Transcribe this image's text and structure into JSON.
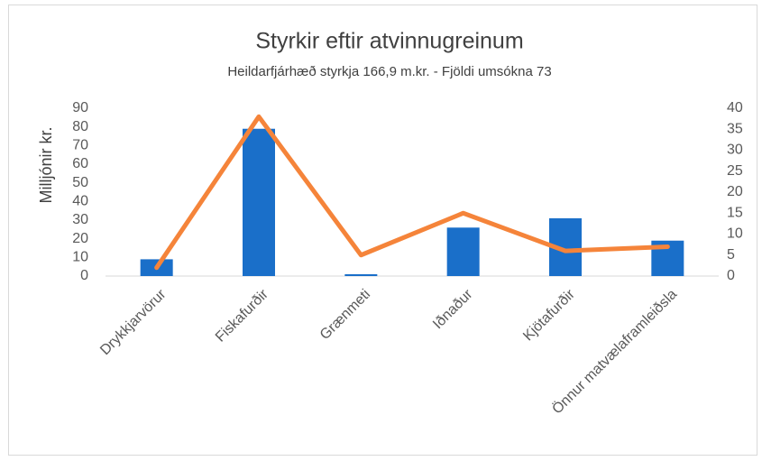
{
  "chart_data": {
    "type": "combo",
    "title": "Styrkir eftir atvinnugreinum",
    "subtitle": "Heildarfjárhæð styrkja 166,9 m.kr. - Fjöldi umsókna 73",
    "ylabel": "Milljónir kr.",
    "categories": [
      "Drykkjarvörur",
      "Fiskafurðir",
      "Grænmeti",
      "Iðnaður",
      "Kjötafurðir",
      "Önnur matvælaframleiðsla"
    ],
    "series": [
      {
        "type": "bar",
        "color": "#1a6fc9",
        "values": [
          9,
          79,
          1,
          26,
          31,
          19
        ]
      },
      {
        "type": "line",
        "axis": "y2",
        "color": "#f5843a",
        "values": [
          2,
          38,
          5,
          15,
          6,
          7
        ]
      }
    ],
    "ylim": [
      0,
      90
    ],
    "yticks": [
      0,
      10,
      20,
      30,
      40,
      50,
      60,
      70,
      80,
      90
    ],
    "y2lim": [
      0,
      40
    ],
    "y2ticks": [
      0,
      5,
      10,
      15,
      20,
      25,
      30,
      35,
      40
    ],
    "grid": false
  }
}
